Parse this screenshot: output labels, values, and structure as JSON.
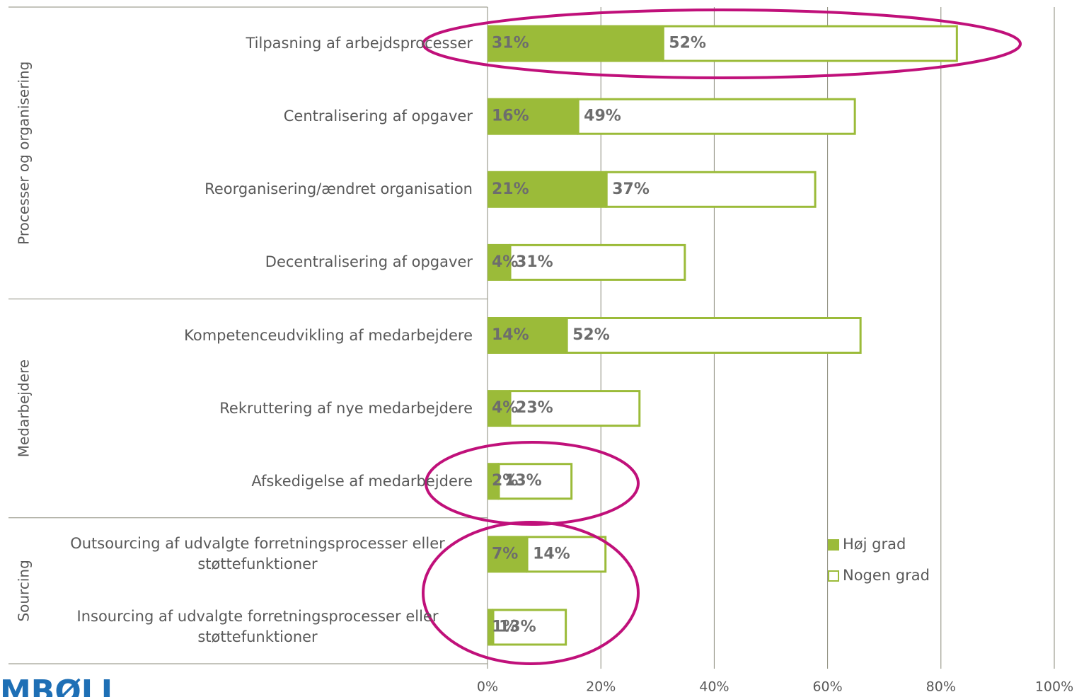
{
  "chart_data": {
    "type": "stacked_bar_horizontal",
    "categories": [
      "Tilpasning af arbejdsprocesser",
      "Centralisering af opgaver",
      "Reorganisering/ændret organisation",
      "Decentralisering af opgaver",
      "Kompetenceudvikling af medarbejdere",
      "Rekruttering af nye medarbejdere",
      "Afskedigelse af medarbejdere",
      "Outsourcing af udvalgte forretningsprocesser eller støttefunktioner",
      "Insourcing af udvalgte forretningsprocesser eller støttefunktioner"
    ],
    "groups": [
      {
        "name": "Processer og organisering",
        "count": 4
      },
      {
        "name": "Medarbejdere",
        "count": 3
      },
      {
        "name": "Sourcing",
        "count": 2
      }
    ],
    "series": [
      {
        "name": "Høj grad",
        "color": "#9bbb39",
        "values": [
          31,
          16,
          21,
          4,
          14,
          4,
          2,
          7,
          1
        ],
        "value_labels": [
          "31%",
          "16%",
          "21%",
          "4%",
          "14%",
          "4%",
          "2%",
          "7%",
          "1%"
        ]
      },
      {
        "name": "Nogen grad",
        "color": "#9bbb39",
        "values": [
          52,
          49,
          37,
          31,
          52,
          23,
          13,
          14,
          13
        ],
        "value_labels": [
          "52%",
          "49%",
          "37%",
          "31%",
          "52%",
          "23%",
          "13%",
          "14%",
          "13%"
        ]
      }
    ],
    "xlim": [
      0,
      100
    ],
    "xticks": [
      {
        "value": 0,
        "label": "0%"
      },
      {
        "value": 20,
        "label": "20%"
      },
      {
        "value": 40,
        "label": "40%"
      },
      {
        "value": 60,
        "label": "60%"
      },
      {
        "value": 80,
        "label": "80%"
      },
      {
        "value": 100,
        "label": "100%"
      }
    ],
    "grid": true,
    "legend": "lower right",
    "logo": "MBØLL"
  }
}
